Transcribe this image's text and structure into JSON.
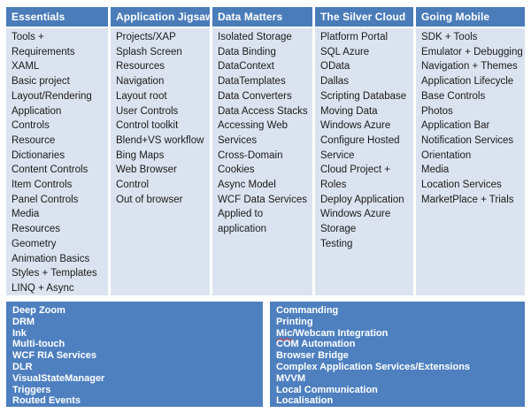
{
  "colors": {
    "header_bg": "#4a7cb9",
    "body_bg": "#dce3f0",
    "bottom_bg": "#4e80bf",
    "body_text": "#1a1a1a",
    "spellcheck_underline": "#e0392f"
  },
  "table": {
    "columns": [
      {
        "header": "Essentials",
        "items": [
          "Tools +",
          "Requirements",
          "XAML",
          "Basic project",
          "Layout/Rendering",
          "Application",
          "Controls",
          "Resource",
          "Dictionaries",
          "Content Controls",
          "Item Controls",
          "Panel Controls",
          "Media",
          "Resources",
          "Geometry",
          "Animation Basics",
          "Styles + Templates",
          "LINQ + Async"
        ]
      },
      {
        "header": "Application Jigsaw",
        "items": [
          "Projects/XAP",
          "Splash Screen",
          "Resources",
          "Navigation",
          "Layout root",
          "User Controls",
          "Control toolkit",
          "Blend+VS workflow",
          "Bing Maps",
          "Web Browser",
          "Control",
          "Out of browser"
        ]
      },
      {
        "header": "Data Matters",
        "items": [
          "Isolated Storage",
          "Data Binding",
          "DataContext",
          "DataTemplates",
          "Data Converters",
          "Data Access Stacks",
          "Accessing Web",
          "Services",
          "Cross-Domain",
          "Cookies",
          "Async Model",
          "WCF Data Services",
          "Applied to",
          "application"
        ]
      },
      {
        "header": "The Silver Cloud",
        "items": [
          "Platform Portal",
          "SQL Azure",
          "OData",
          "Dallas",
          "Scripting Database",
          "Moving Data",
          "Windows Azure",
          "Configure Hosted",
          "Service",
          "Cloud Project +",
          "Roles",
          "Deploy Application",
          "Windows Azure",
          "Storage",
          "Testing"
        ]
      },
      {
        "header": "Going Mobile",
        "items": [
          "SDK + Tools",
          "Emulator + Debugging",
          "Navigation + Themes",
          "Application Lifecycle",
          "Base Controls",
          "Photos",
          "Application Bar",
          "Notification Services",
          "Orientation",
          "Media",
          "Location Services",
          "MarketPlace + Trials"
        ]
      }
    ]
  },
  "bottom": {
    "left_items": [
      "Deep Zoom",
      "DRM",
      "Ink",
      "Multi-touch",
      "WCF RIA Services",
      "DLR",
      "VisualStateManager",
      "Triggers",
      "Routed Events"
    ],
    "right_items": [
      "Commanding",
      "Printing",
      {
        "spellcheck_prefix": "Mic",
        "rest": "/Webcam Integration"
      },
      "COM Automation",
      "Browser Bridge",
      "Complex Application Services/Extensions",
      "MVVM",
      "Local Communication",
      "Localisation"
    ]
  }
}
